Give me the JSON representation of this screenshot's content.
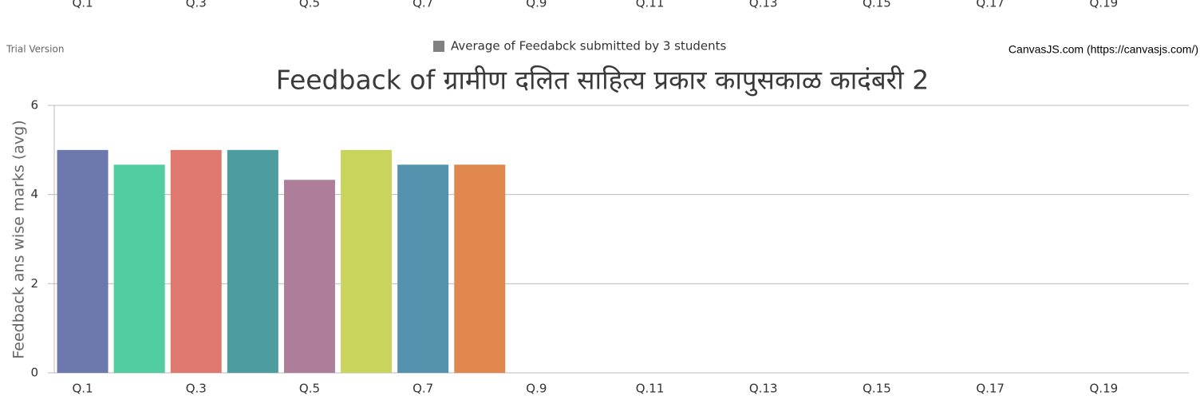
{
  "clipped_axis_labels": [
    "Q.1",
    "Q.3",
    "Q.5",
    "Q.7",
    "Q.9",
    "Q.11",
    "Q.13",
    "Q.15",
    "Q.17",
    "Q.19"
  ],
  "trial_text": "Trial Version",
  "credit": "CanvasJS.com (https://canvasjs.com/)",
  "chart_data": {
    "type": "bar",
    "title": "Feedback of ग्रामीण दलित साहित्य प्रकार  कापुसकाळ कादंबरी 2",
    "y_axis_label": "Feedback ans wise marks (avg)",
    "legend": {
      "name": "Average of Feedabck submitted by 3 students",
      "color": "#808080",
      "position": "top"
    },
    "categories": [
      "Q.1",
      null,
      "Q.3",
      null,
      "Q.5",
      null,
      "Q.7",
      null,
      "Q.9",
      null,
      "Q.11",
      null,
      "Q.13",
      null,
      "Q.15",
      null,
      "Q.17",
      null,
      "Q.19",
      null
    ],
    "values": [
      5,
      4.67,
      5,
      5,
      4.33,
      5,
      4.67,
      4.67,
      null,
      null,
      null,
      null,
      null,
      null,
      null,
      null,
      null,
      null,
      null,
      null
    ],
    "colors": [
      "#6D78AD",
      "#51CDA0",
      "#DF7970",
      "#4C9CA0",
      "#AE7D99",
      "#C9D45C",
      "#5592AD",
      "#DF874D",
      null,
      null,
      null,
      null,
      null,
      null,
      null,
      null,
      null,
      null,
      null,
      null
    ],
    "ylim": [
      0,
      6
    ],
    "yticks": [
      0,
      2,
      4,
      6
    ],
    "grid": true
  }
}
